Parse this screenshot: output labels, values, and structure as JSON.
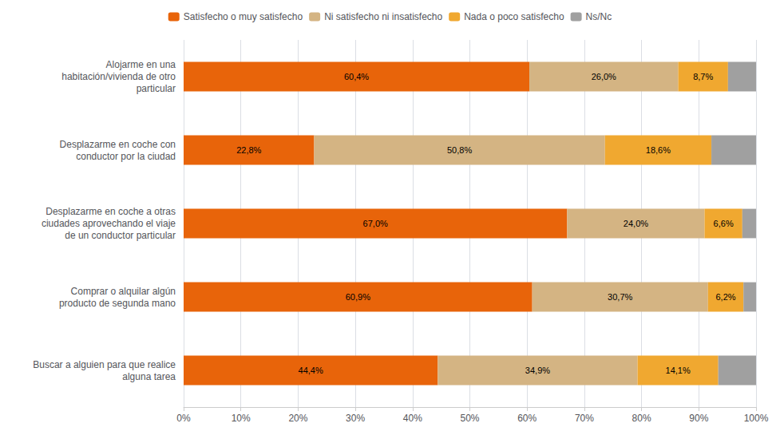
{
  "chart_data": {
    "type": "bar",
    "orientation": "horizontal",
    "stacked": true,
    "data_labels": true,
    "grid": true,
    "legend": "top",
    "categories": [
      "Alojarme en una\nhabitación/vivienda de otro\nparticular",
      "Desplazarme en coche con\nconductor por la ciudad",
      "Desplazarme en coche a otras\nciudades aprovechando el viaje\nde un conductor particular",
      "Comprar o alquilar algún\nproducto de segunda mano",
      "Buscar a alguien para que realice\nalguna tarea"
    ],
    "series": [
      {
        "name": "Satisfecho o muy satisfecho",
        "color": "#E8640A",
        "values": [
          60.4,
          22.8,
          67.0,
          60.9,
          44.4
        ],
        "value_labels": [
          "60,4%",
          "22,8%",
          "67,0%",
          "60,9%",
          "44,4%"
        ]
      },
      {
        "name": "Ni satisfecho ni insatisfecho",
        "color": "#D4B483",
        "values": [
          26.0,
          50.8,
          24.0,
          30.7,
          34.9
        ],
        "value_labels": [
          "26,0%",
          "50,8%",
          "24,0%",
          "30,7%",
          "34,9%"
        ]
      },
      {
        "name": "Nada o poco satisfecho",
        "color": "#F0A830",
        "values": [
          8.7,
          18.6,
          6.6,
          6.2,
          14.1
        ],
        "value_labels": [
          "8,7%",
          "18,6%",
          "6,6%",
          "6,2%",
          "14,1%"
        ]
      },
      {
        "name": "Ns/Nc",
        "color": "#A0A0A0",
        "values": [
          4.9,
          7.8,
          2.4,
          2.2,
          6.6
        ]
      }
    ],
    "xlim": [
      0,
      100
    ],
    "xticks": [
      {
        "value": 0,
        "label": "0%"
      },
      {
        "value": 10,
        "label": "10%"
      },
      {
        "value": 20,
        "label": "20%"
      },
      {
        "value": 30,
        "label": "30%"
      },
      {
        "value": 40,
        "label": "40%"
      },
      {
        "value": 50,
        "label": "50%"
      },
      {
        "value": 60,
        "label": "60%"
      },
      {
        "value": 70,
        "label": "70%"
      },
      {
        "value": 80,
        "label": "80%"
      },
      {
        "value": 90,
        "label": "90%"
      },
      {
        "value": 100,
        "label": "100%"
      }
    ]
  }
}
